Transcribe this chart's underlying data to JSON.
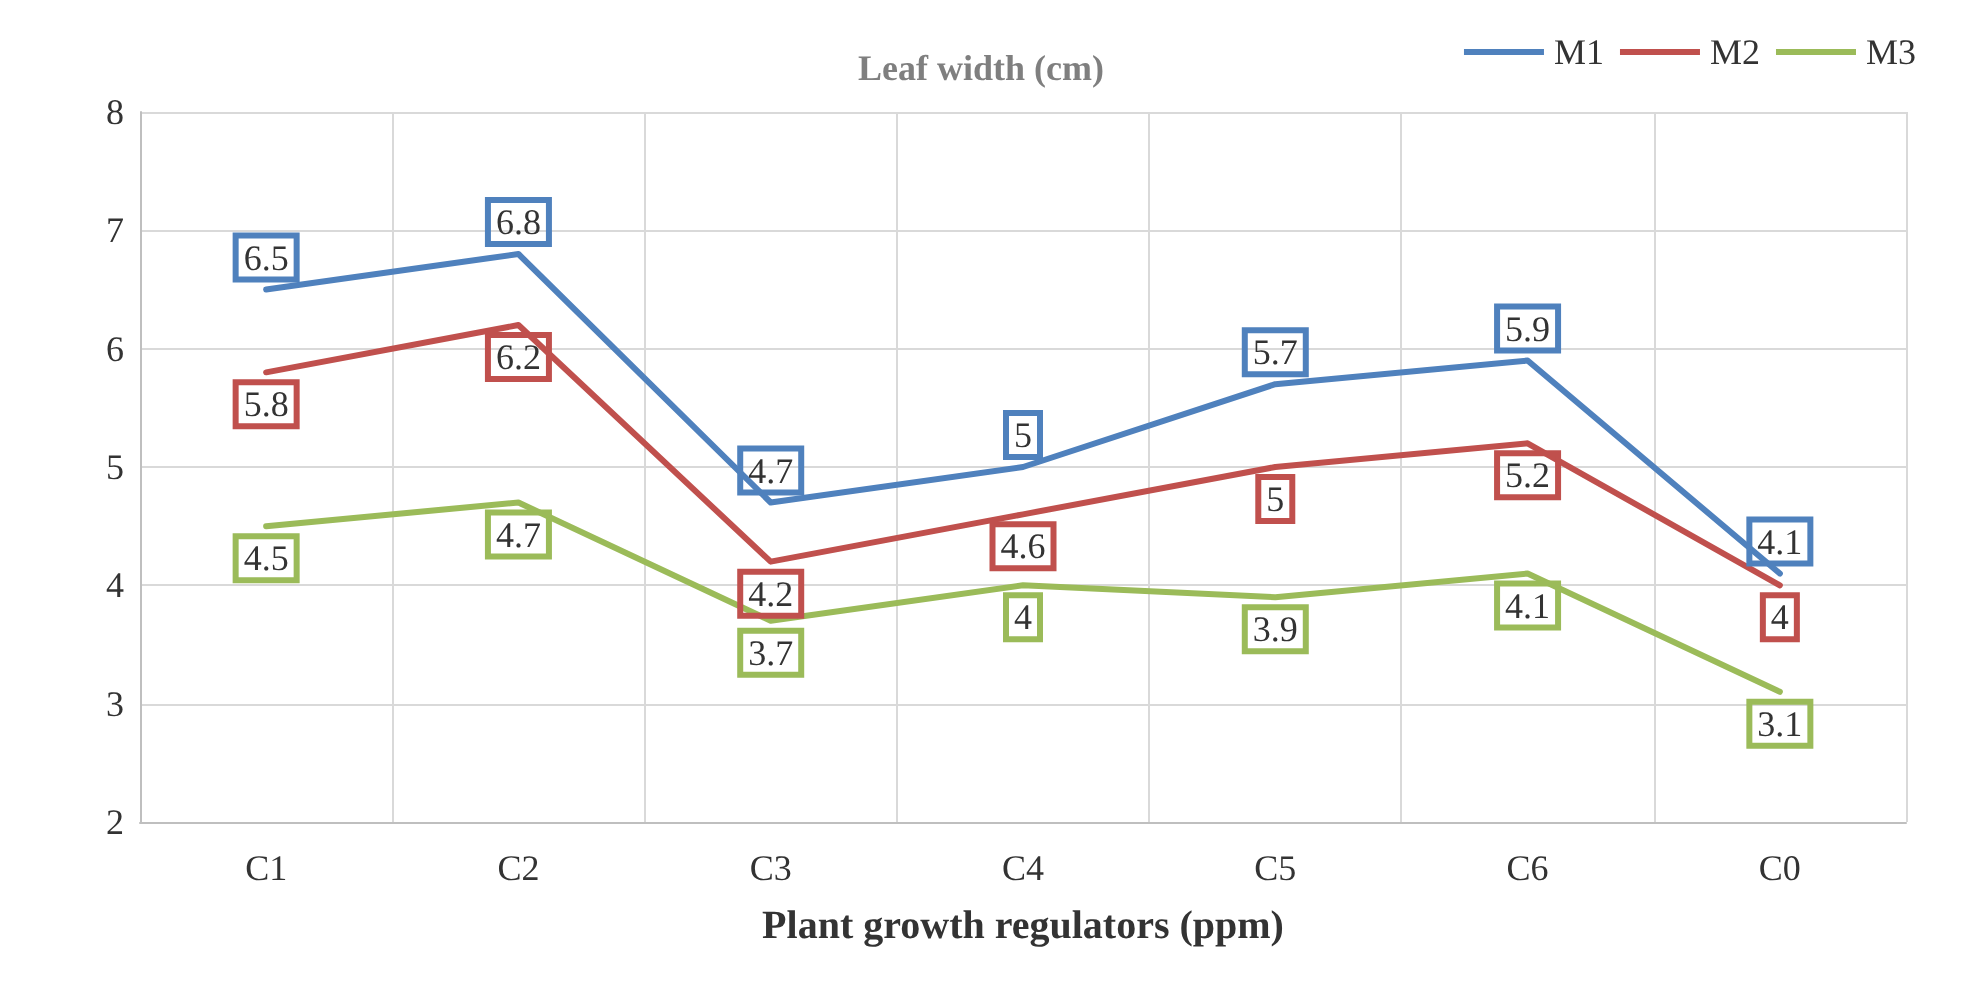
{
  "chart_data": {
    "type": "line",
    "title": "Leaf width (cm)",
    "xlabel": "Plant growth regulators (ppm)",
    "categories": [
      "C1",
      "C2",
      "C3",
      "C4",
      "C5",
      "C6",
      "C0"
    ],
    "series": [
      {
        "name": "M1",
        "color": "#4f81bd",
        "values": [
          6.5,
          6.8,
          4.7,
          5,
          5.7,
          5.9,
          4.1
        ]
      },
      {
        "name": "M2",
        "color": "#c0504d",
        "values": [
          5.8,
          6.2,
          4.2,
          4.6,
          5,
          5.2,
          4
        ]
      },
      {
        "name": "M3",
        "color": "#9bbb59",
        "values": [
          4.5,
          4.7,
          3.7,
          4,
          3.9,
          4.1,
          3.1
        ]
      }
    ],
    "ylim": [
      2,
      8
    ],
    "yticks": [
      2,
      3,
      4,
      5,
      6,
      7,
      8
    ],
    "grid": true,
    "legend": "top right",
    "data_labels": true,
    "marker": "none",
    "line_style": "solid"
  }
}
